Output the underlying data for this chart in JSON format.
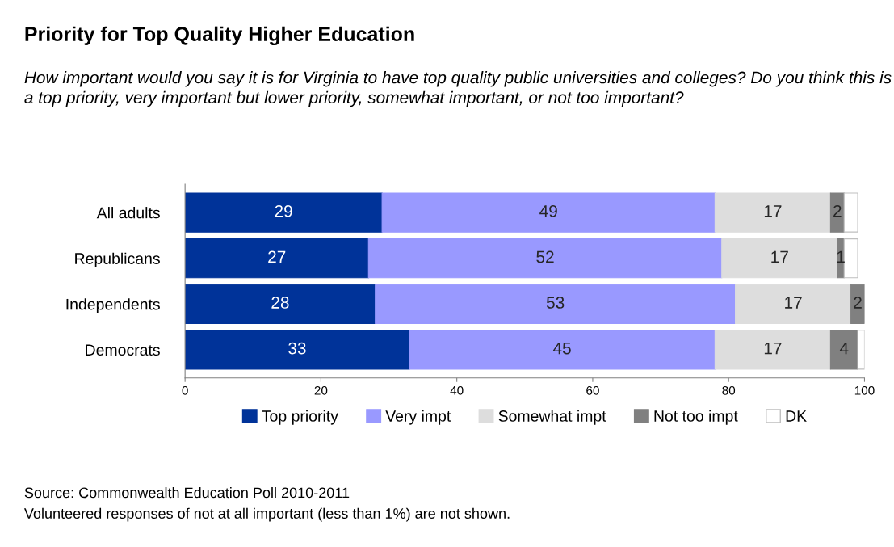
{
  "chart_data": {
    "type": "bar",
    "orientation": "horizontal",
    "stacked": true,
    "title": "Priority for Top Quality Higher Education",
    "subtitle": "How important would you say it is for Virginia to have top quality public universities and colleges? Do you think this is a top priority, very important but lower priority, somewhat important, or not too important?",
    "categories": [
      "All adults",
      "Republicans",
      "Independents",
      "Democrats"
    ],
    "series": [
      {
        "name": "Top priority",
        "color": "#003399",
        "values": [
          29,
          27,
          28,
          33
        ],
        "value_labels": [
          "29",
          "27",
          "28",
          "33"
        ]
      },
      {
        "name": "Very impt",
        "color": "#9999ff",
        "values": [
          49,
          52,
          53,
          45
        ],
        "value_labels": [
          "49",
          "52",
          "53",
          "45"
        ]
      },
      {
        "name": "Somewhat impt",
        "color": "#dddddd",
        "values": [
          17,
          17,
          17,
          17
        ],
        "value_labels": [
          "17",
          "17",
          "17",
          "17"
        ]
      },
      {
        "name": "Not too impt",
        "color": "#808080",
        "values": [
          2,
          1,
          2,
          4
        ],
        "value_labels": [
          "2",
          "1",
          "2",
          "4"
        ]
      },
      {
        "name": "DK",
        "color": "#ffffff",
        "values": [
          2,
          2,
          0,
          1
        ],
        "value_labels": [
          null,
          null,
          null,
          null
        ]
      }
    ],
    "xlim": [
      0,
      100
    ],
    "xticks": [
      0,
      20,
      40,
      60,
      80,
      100
    ],
    "grid": false,
    "legend": "bottom",
    "annotations": [
      "Source: Commonwealth Education Poll 2010-2011",
      "Volunteered responses of not at all important (less than 1%) are not shown."
    ]
  }
}
